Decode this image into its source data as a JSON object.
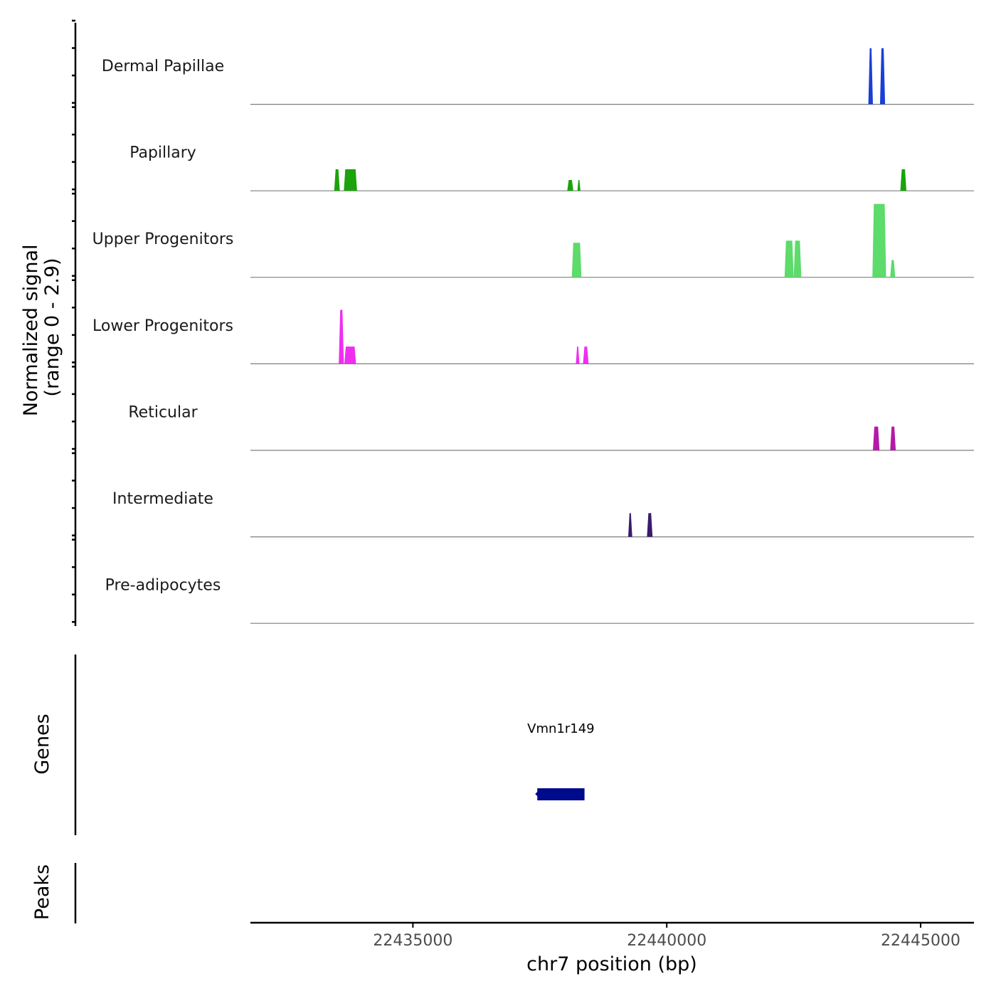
{
  "chart_data": {
    "type": "area",
    "title": "",
    "chromosome": "chr7",
    "xlabel": "chr7 position (bp)",
    "xlim": [
      22431800,
      22446050
    ],
    "x_ticks": [
      22435000,
      22440000,
      22445000
    ],
    "x_tick_labels": [
      "22435000",
      "22440000",
      "22445000"
    ],
    "ylabel_line1": "Normalized signal",
    "ylabel_line2": "(range 0 - 2.9)",
    "ylim": [
      0,
      2.9
    ],
    "series": [
      {
        "name": "Dermal Papillae",
        "color": "#1a3ed8",
        "peaks": [
          {
            "start": 22443970,
            "end": 22444060,
            "height": 2.6
          },
          {
            "start": 22444200,
            "end": 22444300,
            "height": 2.6
          }
        ]
      },
      {
        "name": "Papillary",
        "color": "#1aa30a",
        "peaks": [
          {
            "start": 22433450,
            "end": 22433560,
            "height": 1.0
          },
          {
            "start": 22433640,
            "end": 22433900,
            "height": 1.0
          },
          {
            "start": 22438040,
            "end": 22438160,
            "height": 0.5
          },
          {
            "start": 22438240,
            "end": 22438300,
            "height": 0.5
          },
          {
            "start": 22444600,
            "end": 22444720,
            "height": 1.0
          }
        ]
      },
      {
        "name": "Upper Progenitors",
        "color": "#5ddb6b",
        "peaks": [
          {
            "start": 22438130,
            "end": 22438320,
            "height": 1.6
          },
          {
            "start": 22442320,
            "end": 22442500,
            "height": 1.7
          },
          {
            "start": 22442500,
            "end": 22442650,
            "height": 1.7
          },
          {
            "start": 22444050,
            "end": 22444320,
            "height": 3.4
          },
          {
            "start": 22444400,
            "end": 22444500,
            "height": 0.8
          }
        ]
      },
      {
        "name": "Lower Progenitors",
        "color": "#f02ef0",
        "peaks": [
          {
            "start": 22433540,
            "end": 22433640,
            "height": 2.5
          },
          {
            "start": 22433650,
            "end": 22433880,
            "height": 0.8
          },
          {
            "start": 22438210,
            "end": 22438280,
            "height": 0.8
          },
          {
            "start": 22438350,
            "end": 22438460,
            "height": 0.8
          }
        ]
      },
      {
        "name": "Reticular",
        "color": "#b31aa8",
        "peaks": [
          {
            "start": 22444060,
            "end": 22444190,
            "height": 1.1
          },
          {
            "start": 22444400,
            "end": 22444510,
            "height": 1.1
          }
        ]
      },
      {
        "name": "Intermediate",
        "color": "#3a1a6e",
        "peaks": [
          {
            "start": 22439240,
            "end": 22439320,
            "height": 1.1
          },
          {
            "start": 22439610,
            "end": 22439720,
            "height": 1.1
          }
        ]
      },
      {
        "name": "Pre-adipocytes",
        "color": "#2b2b2b",
        "peaks": []
      }
    ],
    "genes_track": {
      "label": "Genes",
      "genes": [
        {
          "name": "Vmn1r149",
          "start": 22437450,
          "end": 22438380,
          "color": "#000a8c"
        }
      ]
    },
    "peaks_track": {
      "label": "Peaks",
      "peaks": []
    }
  }
}
